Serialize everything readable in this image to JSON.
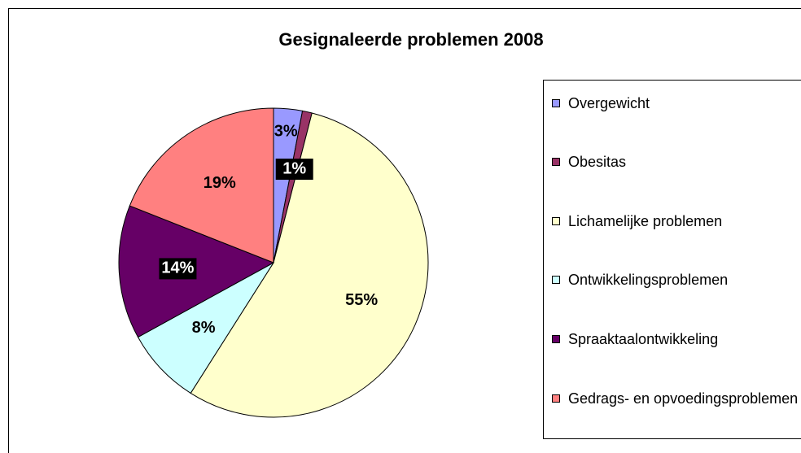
{
  "chart_data": {
    "type": "pie",
    "title": "Gesignaleerde problemen 2008",
    "categories": [
      "Overgewicht",
      "Obesitas",
      "Lichamelijke problemen",
      "Ontwikkelingsproblemen",
      "Spraaktaalontwikkeling",
      "Gedrags- en opvoedingsproblemen"
    ],
    "values": [
      3,
      1,
      55,
      8,
      14,
      19
    ],
    "value_labels": [
      "3%",
      "1%",
      "55%",
      "8%",
      "14%",
      "19%"
    ],
    "colors": [
      "#9999ff",
      "#993366",
      "#ffffcc",
      "#ccffff",
      "#660066",
      "#ff8080"
    ],
    "legend": "right"
  }
}
